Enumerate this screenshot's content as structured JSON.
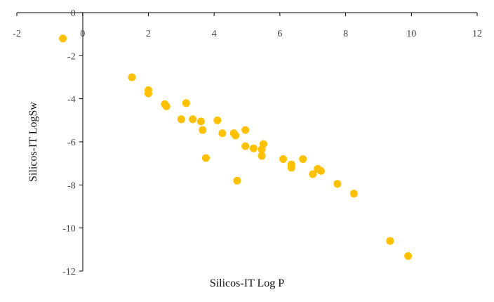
{
  "chart_data": {
    "type": "scatter",
    "xlabel": "Silicos-IT Log P",
    "ylabel": "Silicos-IT LogSw",
    "xlim": [
      -2,
      12
    ],
    "ylim": [
      -12,
      0
    ],
    "x_ticks": [
      -2,
      0,
      2,
      4,
      6,
      8,
      10,
      12
    ],
    "y_ticks": [
      0,
      -2,
      -4,
      -6,
      -8,
      -10,
      -12
    ],
    "grid": false,
    "legend": "none",
    "marker_color": "#FFC000",
    "series": [
      {
        "points": [
          [
            -0.6,
            -1.2
          ],
          [
            1.5,
            -3.0
          ],
          [
            2.0,
            -3.6
          ],
          [
            2.0,
            -3.75
          ],
          [
            2.5,
            -4.25
          ],
          [
            2.55,
            -4.35
          ],
          [
            3.0,
            -4.95
          ],
          [
            3.15,
            -4.2
          ],
          [
            3.35,
            -4.95
          ],
          [
            3.6,
            -5.05
          ],
          [
            3.65,
            -5.45
          ],
          [
            3.75,
            -6.75
          ],
          [
            4.1,
            -5.0
          ],
          [
            4.25,
            -5.6
          ],
          [
            4.6,
            -5.6
          ],
          [
            4.65,
            -5.7
          ],
          [
            4.7,
            -7.8
          ],
          [
            4.95,
            -5.45
          ],
          [
            4.95,
            -6.2
          ],
          [
            5.2,
            -6.3
          ],
          [
            5.45,
            -6.35
          ],
          [
            5.45,
            -6.65
          ],
          [
            5.5,
            -6.1
          ],
          [
            6.1,
            -6.8
          ],
          [
            6.35,
            -7.05
          ],
          [
            6.35,
            -7.2
          ],
          [
            6.7,
            -6.8
          ],
          [
            7.0,
            -7.5
          ],
          [
            7.15,
            -7.25
          ],
          [
            7.25,
            -7.35
          ],
          [
            7.75,
            -7.95
          ],
          [
            8.25,
            -8.4
          ],
          [
            9.35,
            -10.6
          ],
          [
            9.9,
            -11.3
          ]
        ]
      }
    ]
  }
}
